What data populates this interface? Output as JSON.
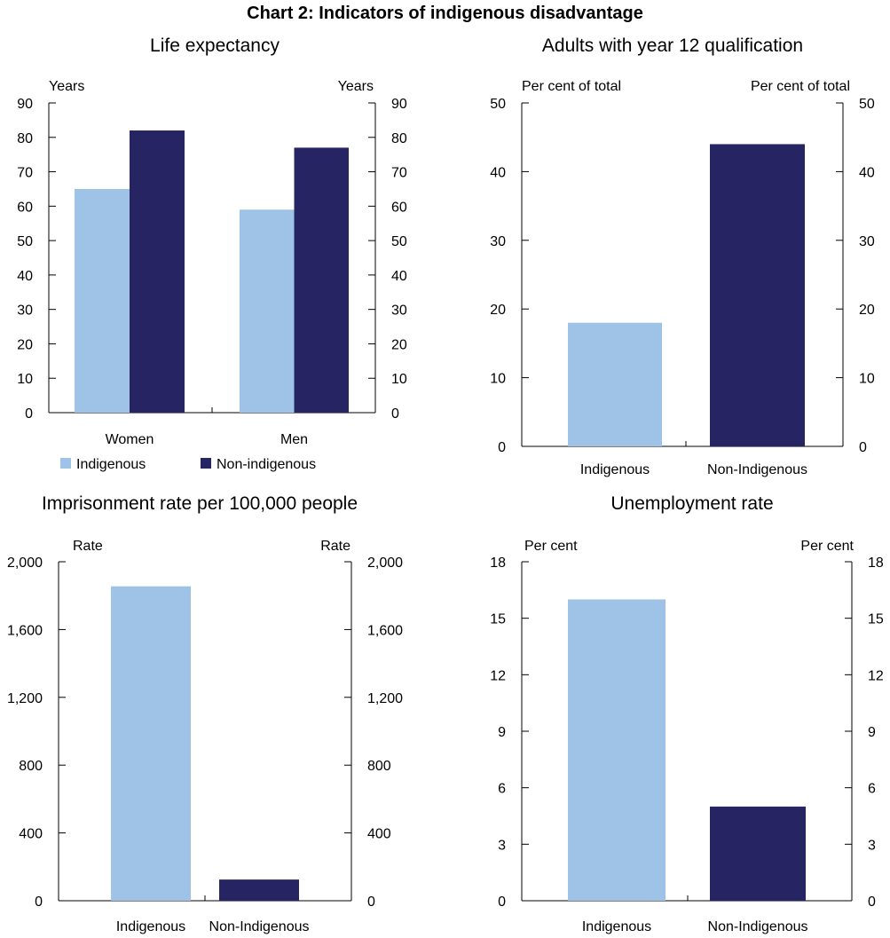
{
  "title": "Chart 2: Indicators of indigenous disadvantage",
  "colors": {
    "indigenous": "#9fc3e7",
    "non_indigenous": "#262463",
    "axis": "#000000"
  },
  "chart_data": [
    {
      "type": "bar",
      "title": "Life expectancy",
      "y_unit_left": "Years",
      "y_unit_right": "Years",
      "categories": [
        "Women",
        "Men"
      ],
      "series": [
        {
          "name": "Indigenous",
          "values": [
            65,
            59
          ]
        },
        {
          "name": "Non-indigenous",
          "values": [
            82,
            77
          ]
        }
      ],
      "ylim": [
        0,
        90
      ],
      "yticks": [
        "0",
        "10",
        "20",
        "30",
        "40",
        "50",
        "60",
        "70",
        "80",
        "90"
      ],
      "legend": "bottom"
    },
    {
      "type": "bar",
      "title": "Adults with year 12 qualification",
      "y_unit_left": "Per cent of total",
      "y_unit_right": "Per cent of total",
      "categories": [
        "Indigenous",
        "Non-Indigenous"
      ],
      "values": [
        18,
        44
      ],
      "ylim": [
        0,
        50
      ],
      "yticks": [
        "0",
        "10",
        "20",
        "30",
        "40",
        "50"
      ]
    },
    {
      "type": "bar",
      "title": "Imprisonment rate per 100,000 people",
      "y_unit_left": "Rate",
      "y_unit_right": "Rate",
      "categories": [
        "Indigenous",
        "Non-Indigenous"
      ],
      "values": [
        1855,
        125
      ],
      "ylim": [
        0,
        2000
      ],
      "yticks": [
        "0",
        "400",
        "800",
        "1,200",
        "1,600",
        "2,000"
      ]
    },
    {
      "type": "bar",
      "title": "Unemployment rate",
      "y_unit_left": "Per cent",
      "y_unit_right": "Per cent",
      "categories": [
        "Indigenous",
        "Non-Indigenous"
      ],
      "values": [
        16,
        5
      ],
      "ylim": [
        0,
        18
      ],
      "yticks": [
        "0",
        "3",
        "6",
        "9",
        "12",
        "15",
        "18"
      ]
    }
  ]
}
